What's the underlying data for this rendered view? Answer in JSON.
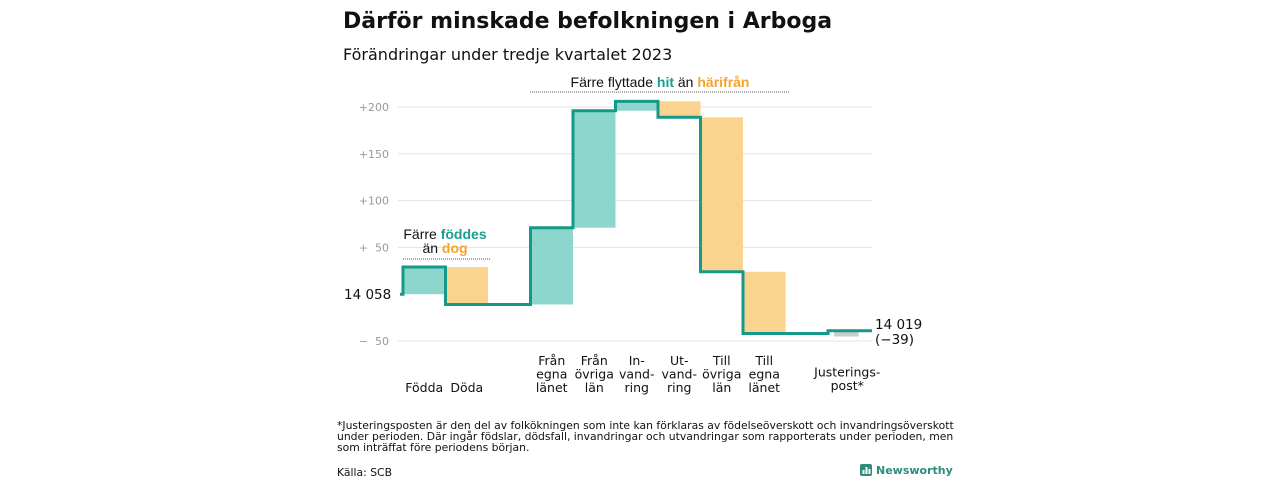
{
  "title": "Därför minskade befolkningen i Arboga",
  "subtitle": "Förändringar under tredje kvartalet 2023",
  "colors": {
    "increase_fill": "#8dd6cd",
    "decrease_fill": "#fad48e",
    "adjust_fill": "#cccccc",
    "line": "#14998a",
    "teal_text": "#16a08f",
    "orange_text": "#f5a32b",
    "grid": "#e3e3e3",
    "brand": "#2d8c7c"
  },
  "annotations": {
    "births": {
      "prefix": "Färre",
      "hi1": "föddes",
      "line2": "än",
      "hi2": "dog"
    },
    "moves": {
      "prefix": "Färre flyttade",
      "hi1": "hit",
      "mid": "än",
      "hi2": "härifrån"
    }
  },
  "start_label": "14  058",
  "end_label": "14 019",
  "end_change": "(−39)",
  "footnote": [
    "*Justeringsposten är den del av folkökningen som inte kan förklaras av födelseöverskott och invandringsöverskott",
    "under perioden. Där ingår födslar, dödsfall, invandringar och utvandringar som rapporterats under perioden, men",
    "som inträffat före periodens början."
  ],
  "source": "Källa: SCB",
  "brand": "Newsworthy",
  "chart_data": {
    "type": "waterfall",
    "start": 14058,
    "end": 14019,
    "net_change": -39,
    "y_ticks": [
      "+200",
      "+150",
      "+100",
      "+  50",
      "−  50"
    ],
    "y_tick_values": [
      200,
      150,
      100,
      50,
      -50
    ],
    "ylim": [
      -55,
      215
    ],
    "grid": true,
    "categories": [
      {
        "label": [
          "Födda"
        ],
        "change": 29
      },
      {
        "label": [
          "Döda"
        ],
        "change": -40
      },
      {
        "label": [
          "Från",
          "egna",
          "länet"
        ],
        "change": 82
      },
      {
        "label": [
          "Från",
          "övriga",
          "län"
        ],
        "change": 125
      },
      {
        "label": [
          "In-",
          "vand-",
          "ring"
        ],
        "change": 10
      },
      {
        "label": [
          "Ut-",
          "vand-",
          "ring"
        ],
        "change": -17
      },
      {
        "label": [
          "Till",
          "övriga",
          "län"
        ],
        "change": -165
      },
      {
        "label": [
          "Till",
          "egna",
          "länet"
        ],
        "change": -66
      },
      {
        "label": [
          "Justerings-",
          "post*"
        ],
        "change": 3
      }
    ]
  }
}
